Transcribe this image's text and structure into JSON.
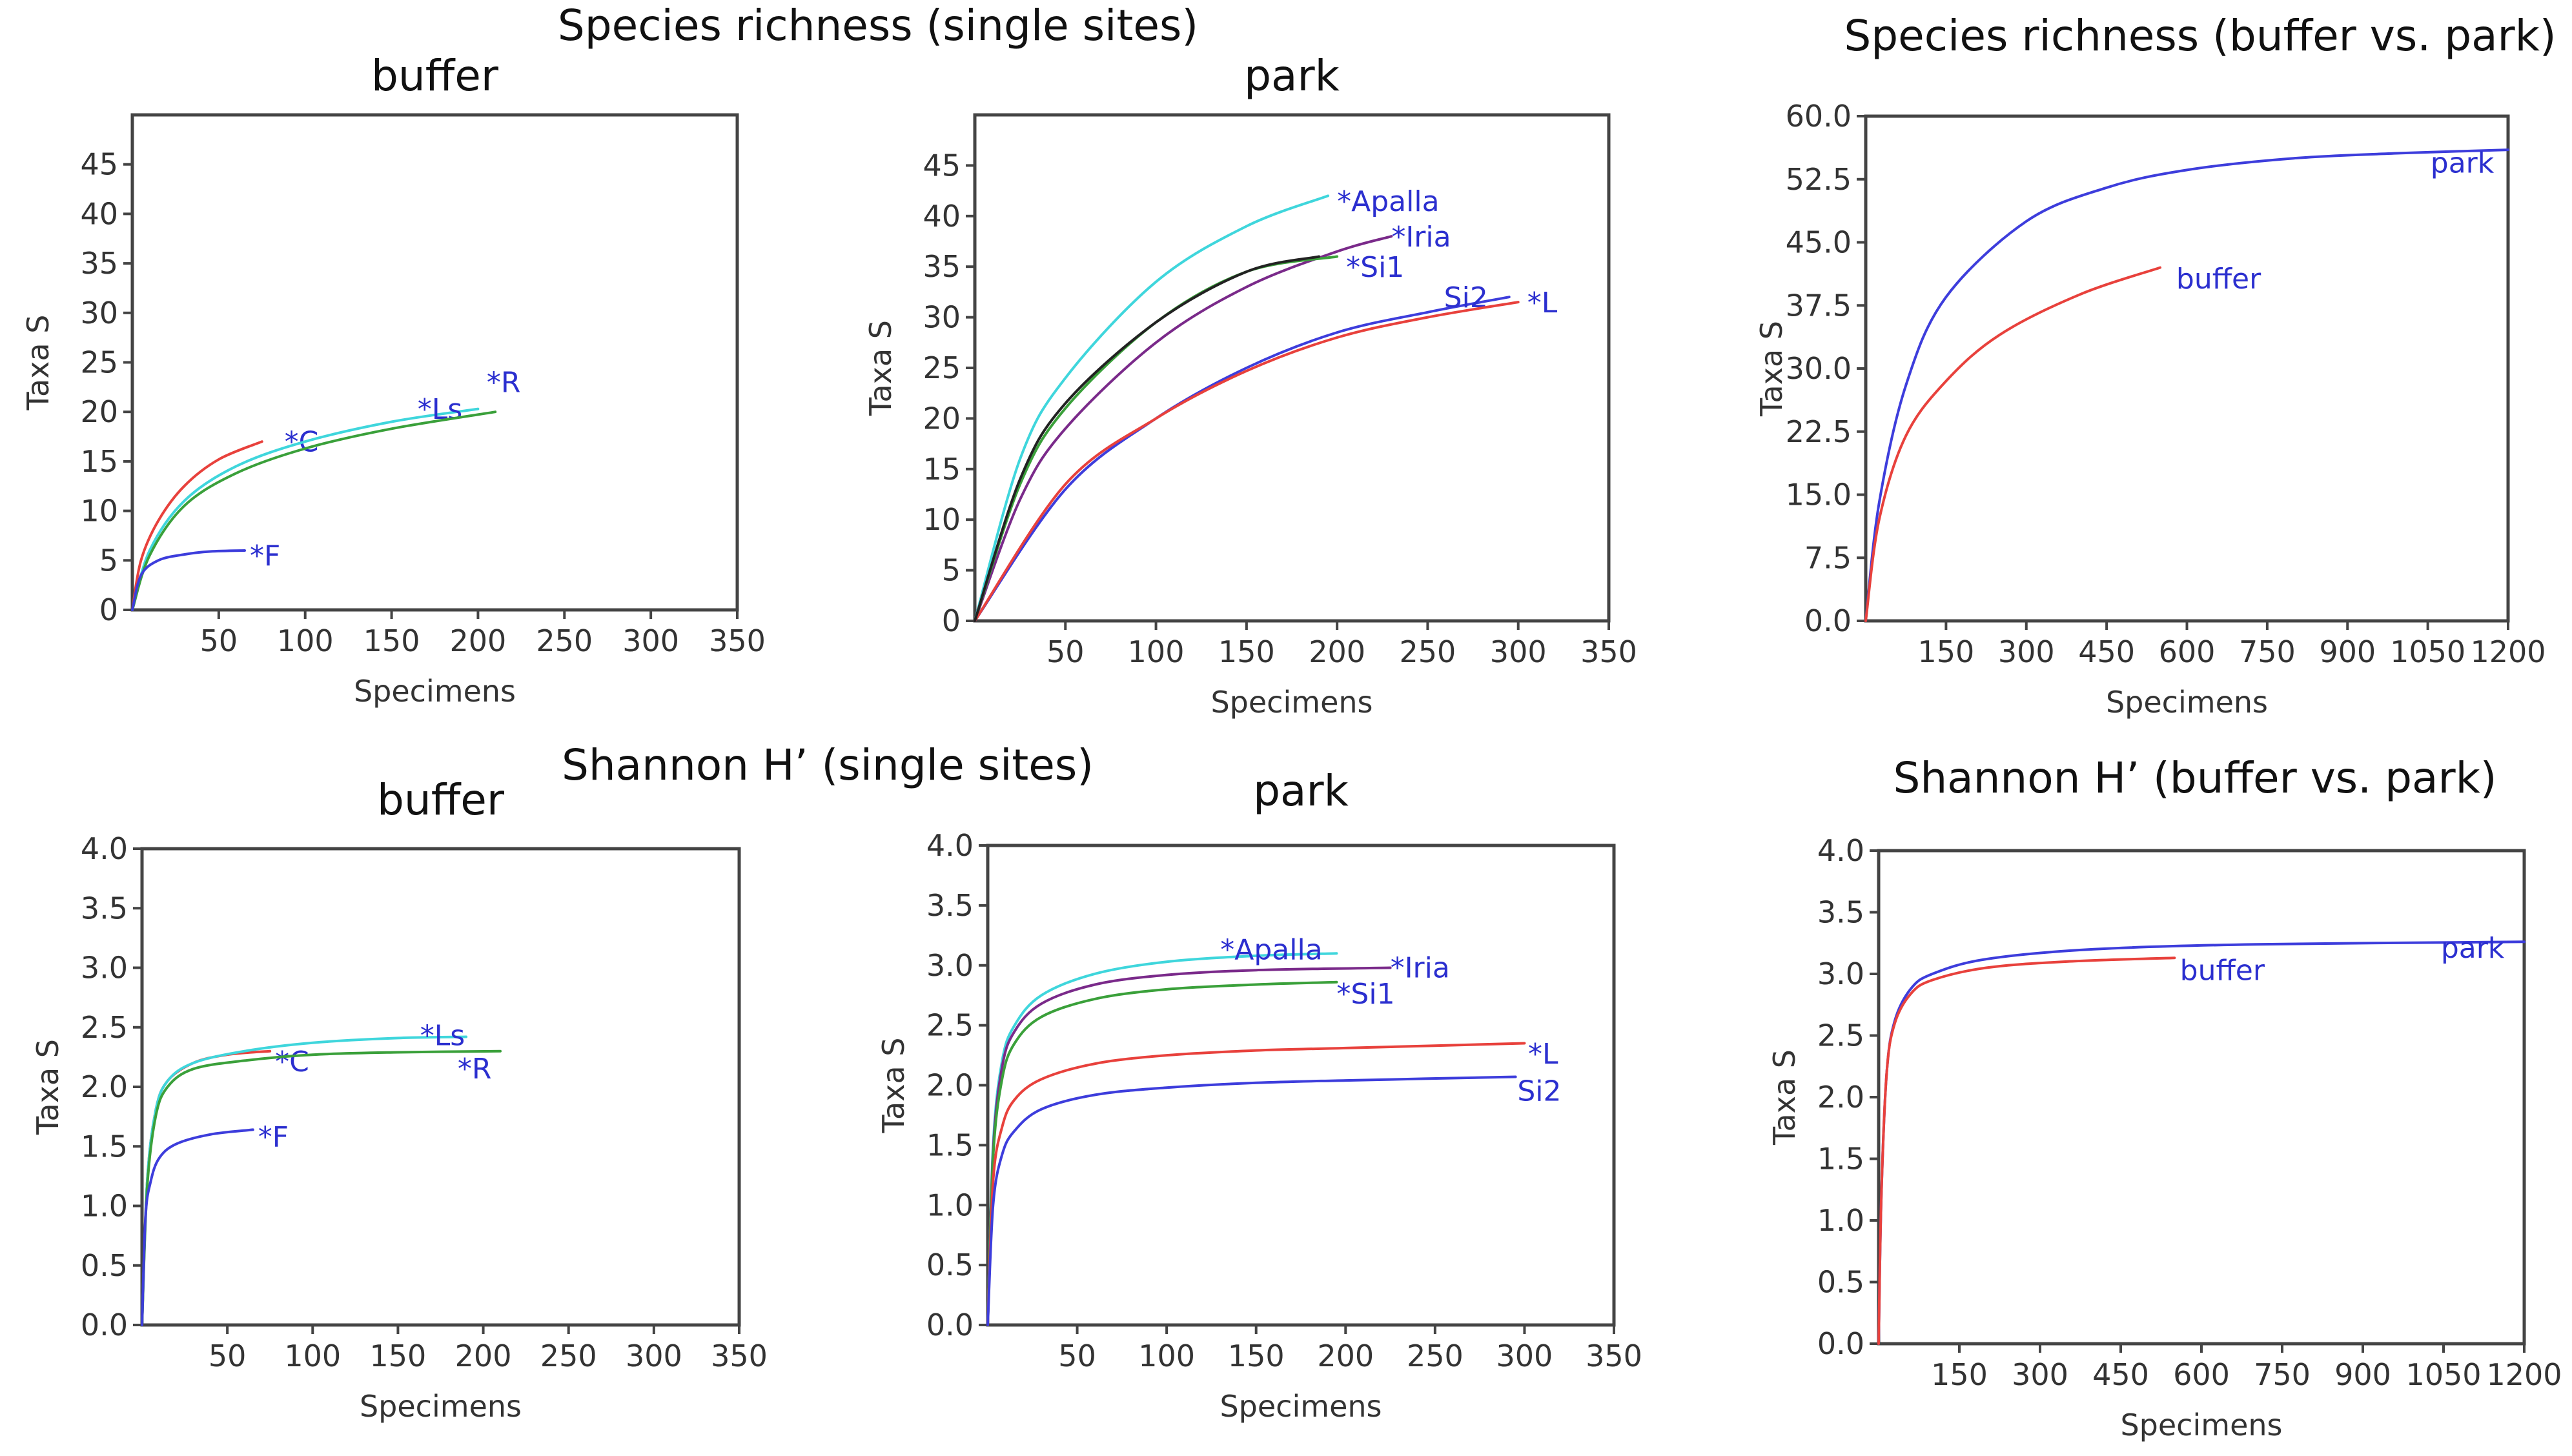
{
  "figure": {
    "section_titles": {
      "richness_single": "Species richness (single sites)",
      "richness_compare": "Species richness (buffer vs. park)",
      "shannon_single": "Shannon H’ (single sites)",
      "shannon_compare": "Shannon H’ (buffer vs. park)"
    }
  },
  "chart_data": [
    {
      "id": "richness_buffer",
      "type": "line",
      "title": "buffer",
      "xlabel": "Specimens",
      "ylabel": "Taxa S",
      "xlim": [
        0,
        350
      ],
      "ylim": [
        0,
        50
      ],
      "xticks": [
        50,
        100,
        150,
        200,
        250,
        300,
        350
      ],
      "xtick_labels": [
        "50",
        "100",
        "150",
        "200",
        "250",
        "300",
        "350"
      ],
      "yticks": [
        0,
        5,
        10,
        15,
        20,
        25,
        30,
        35,
        40,
        45
      ],
      "ytick_labels": [
        "0",
        "5",
        "10",
        "15",
        "20",
        "25",
        "30",
        "35",
        "40",
        "45"
      ],
      "series": [
        {
          "name": "*C",
          "color": "#e8413c",
          "x": [
            0,
            5,
            15,
            30,
            50,
            75
          ],
          "y": [
            0,
            5,
            9,
            12.5,
            15.2,
            17
          ],
          "label": "*C",
          "label_at": [
            88,
            16
          ]
        },
        {
          "name": "*Ls",
          "color": "#3fd6dc",
          "x": [
            0,
            10,
            30,
            60,
            100,
            150,
            200
          ],
          "y": [
            0,
            6,
            11,
            14.5,
            17,
            19,
            20.3
          ],
          "label": "*Ls",
          "label_at": [
            165,
            19.3
          ]
        },
        {
          "name": "*R",
          "color": "#3aa03a",
          "x": [
            0,
            10,
            30,
            60,
            100,
            150,
            210
          ],
          "y": [
            0,
            5.5,
            10.5,
            13.8,
            16.3,
            18.3,
            20
          ],
          "label": "*R",
          "label_at": [
            205,
            22
          ]
        },
        {
          "name": "*F",
          "color": "#3d3ddc",
          "x": [
            0,
            5,
            15,
            30,
            45,
            65
          ],
          "y": [
            0,
            3.5,
            5,
            5.6,
            5.9,
            6
          ],
          "label": "*F",
          "label_at": [
            68,
            4.5
          ]
        }
      ]
    },
    {
      "id": "richness_park",
      "type": "line",
      "title": "park",
      "xlabel": "Specimens",
      "ylabel": "Taxa S",
      "xlim": [
        0,
        350
      ],
      "ylim": [
        0,
        50
      ],
      "xticks": [
        50,
        100,
        150,
        200,
        250,
        300,
        350
      ],
      "xtick_labels": [
        "50",
        "100",
        "150",
        "200",
        "250",
        "300",
        "350"
      ],
      "yticks": [
        0,
        5,
        10,
        15,
        20,
        25,
        30,
        35,
        40,
        45
      ],
      "ytick_labels": [
        "0",
        "5",
        "10",
        "15",
        "20",
        "25",
        "30",
        "35",
        "40",
        "45"
      ],
      "series": [
        {
          "name": "*Apalla",
          "color": "#3fd6dc",
          "x": [
            0,
            25,
            50,
            100,
            150,
            195
          ],
          "y": [
            0,
            16,
            24,
            33.5,
            39,
            42
          ],
          "label": "*Apalla",
          "label_at": [
            200,
            40.5
          ]
        },
        {
          "name": "*Iria",
          "color": "#7a2a8a",
          "x": [
            0,
            25,
            50,
            100,
            150,
            200,
            230
          ],
          "y": [
            0,
            12,
            19,
            27.5,
            33,
            36.5,
            38
          ],
          "label": "*Iria",
          "label_at": [
            230,
            37
          ]
        },
        {
          "name": "*Si1",
          "color": "#3aa03a",
          "x": [
            0,
            25,
            50,
            100,
            150,
            200
          ],
          "y": [
            0,
            13.5,
            21,
            29.5,
            34.5,
            36
          ],
          "label": "*Si1",
          "label_at": [
            205,
            34
          ]
        },
        {
          "name": "Si2",
          "color": "#3d3ddc",
          "x": [
            0,
            50,
            100,
            150,
            200,
            250,
            295
          ],
          "y": [
            0,
            13,
            20,
            25,
            28.5,
            30.5,
            32
          ],
          "label": "Si2",
          "label_at": [
            259,
            31
          ]
        },
        {
          "name": "*L",
          "color": "#e8413c",
          "x": [
            0,
            50,
            100,
            150,
            200,
            250,
            300
          ],
          "y": [
            0,
            13.5,
            20,
            24.7,
            28,
            30,
            31.5
          ],
          "label": "*L",
          "label_at": [
            305,
            30.5
          ]
        },
        {
          "name": "",
          "color": "#222222",
          "x": [
            0,
            25,
            50,
            100,
            150,
            190
          ],
          "y": [
            0,
            14,
            21.5,
            29.5,
            34.5,
            36
          ],
          "label": "",
          "label_at": null
        }
      ]
    },
    {
      "id": "richness_compare",
      "type": "line",
      "title": "",
      "xlabel": "Specimens",
      "ylabel": "Taxa S",
      "xlim": [
        0,
        1200
      ],
      "ylim": [
        0,
        60
      ],
      "xticks": [
        150,
        300,
        450,
        600,
        750,
        900,
        1050,
        1200
      ],
      "xtick_labels": [
        "150",
        "300",
        "450",
        "600",
        "750",
        "900",
        "1050",
        "1200"
      ],
      "yticks": [
        0,
        7.5,
        15,
        22.5,
        30,
        37.5,
        45,
        52.5,
        60
      ],
      "ytick_labels": [
        "0.0",
        "7.5",
        "15.0",
        "22.5",
        "30.0",
        "37.5",
        "45.0",
        "52.5",
        "60.0"
      ],
      "series": [
        {
          "name": "park",
          "color": "#3d3ddc",
          "x": [
            0,
            25,
            75,
            150,
            300,
            450,
            600,
            800,
            1000,
            1200
          ],
          "y": [
            0,
            14,
            28,
            38.5,
            47.5,
            51.5,
            53.6,
            55,
            55.6,
            56
          ],
          "label": "park",
          "label_at": [
            1055,
            53.3
          ]
        },
        {
          "name": "buffer",
          "color": "#e8413c",
          "x": [
            0,
            25,
            75,
            150,
            250,
            400,
            550
          ],
          "y": [
            0,
            12,
            22,
            28.5,
            34,
            38.8,
            42
          ],
          "label": "buffer",
          "label_at": [
            580,
            39.5
          ]
        }
      ]
    },
    {
      "id": "shannon_buffer",
      "type": "line",
      "title": "buffer",
      "xlabel": "Specimens",
      "ylabel": "Taxa S",
      "xlim": [
        0,
        350
      ],
      "ylim": [
        0,
        4
      ],
      "xticks": [
        50,
        100,
        150,
        200,
        250,
        300,
        350
      ],
      "xtick_labels": [
        "50",
        "100",
        "150",
        "200",
        "250",
        "300",
        "350"
      ],
      "yticks": [
        0,
        0.5,
        1,
        1.5,
        2,
        2.5,
        3,
        3.5,
        4
      ],
      "ytick_labels": [
        "0.0",
        "0.5",
        "1.0",
        "1.5",
        "2.0",
        "2.5",
        "3.0",
        "3.5",
        "4.0"
      ],
      "series": [
        {
          "name": "*C",
          "color": "#e8413c",
          "x": [
            0,
            3,
            8,
            15,
            30,
            50,
            75
          ],
          "y": [
            0,
            1.2,
            1.8,
            2.05,
            2.2,
            2.27,
            2.3
          ],
          "label": "*C",
          "label_at": [
            78,
            2.13
          ]
        },
        {
          "name": "*Ls",
          "color": "#3fd6dc",
          "x": [
            0,
            3,
            8,
            15,
            30,
            60,
            100,
            150,
            190
          ],
          "y": [
            0,
            1.2,
            1.8,
            2.05,
            2.2,
            2.3,
            2.37,
            2.41,
            2.42
          ],
          "label": "*Ls",
          "label_at": [
            163,
            2.35
          ]
        },
        {
          "name": "*R",
          "color": "#3aa03a",
          "x": [
            0,
            3,
            8,
            15,
            30,
            60,
            100,
            150,
            210
          ],
          "y": [
            0,
            1.15,
            1.75,
            2.0,
            2.15,
            2.22,
            2.27,
            2.29,
            2.3
          ],
          "label": "*R",
          "label_at": [
            185,
            2.07
          ]
        },
        {
          "name": "*F",
          "color": "#3d3ddc",
          "x": [
            0,
            2,
            5,
            10,
            20,
            40,
            65
          ],
          "y": [
            0,
            0.9,
            1.2,
            1.4,
            1.52,
            1.6,
            1.64
          ],
          "label": "*F",
          "label_at": [
            68,
            1.5
          ]
        }
      ]
    },
    {
      "id": "shannon_park",
      "type": "line",
      "title": "park",
      "xlabel": "Specimens",
      "ylabel": "Taxa S",
      "xlim": [
        0,
        350
      ],
      "ylim": [
        0,
        4
      ],
      "xticks": [
        50,
        100,
        150,
        200,
        250,
        300,
        350
      ],
      "xtick_labels": [
        "50",
        "100",
        "150",
        "200",
        "250",
        "300",
        "350"
      ],
      "yticks": [
        0,
        0.5,
        1,
        1.5,
        2,
        2.5,
        3,
        3.5,
        4
      ],
      "ytick_labels": [
        "0.0",
        "0.5",
        "1.0",
        "1.5",
        "2.0",
        "2.5",
        "3.0",
        "3.5",
        "4.0"
      ],
      "series": [
        {
          "name": "*Apalla",
          "color": "#3fd6dc",
          "x": [
            0,
            3,
            8,
            15,
            30,
            60,
            100,
            150,
            195
          ],
          "y": [
            0,
            1.5,
            2.2,
            2.5,
            2.75,
            2.93,
            3.03,
            3.08,
            3.1
          ],
          "label": "*Apalla",
          "label_at": [
            130,
            3.05
          ]
        },
        {
          "name": "*Iria",
          "color": "#7a2a8a",
          "x": [
            0,
            3,
            8,
            15,
            30,
            60,
            100,
            150,
            225
          ],
          "y": [
            0,
            1.45,
            2.15,
            2.45,
            2.68,
            2.84,
            2.92,
            2.96,
            2.98
          ],
          "label": "*Iria",
          "label_at": [
            225,
            2.9
          ]
        },
        {
          "name": "*Si1",
          "color": "#3aa03a",
          "x": [
            0,
            3,
            8,
            15,
            30,
            60,
            100,
            150,
            195
          ],
          "y": [
            0,
            1.4,
            2.05,
            2.35,
            2.57,
            2.72,
            2.8,
            2.84,
            2.86
          ],
          "label": "*Si1",
          "label_at": [
            195,
            2.68
          ]
        },
        {
          "name": "*L",
          "color": "#e8413c",
          "x": [
            0,
            3,
            8,
            15,
            30,
            60,
            100,
            150,
            200,
            300
          ],
          "y": [
            0,
            1.2,
            1.65,
            1.88,
            2.05,
            2.18,
            2.25,
            2.29,
            2.31,
            2.35
          ],
          "label": "*L",
          "label_at": [
            302,
            2.18
          ]
        },
        {
          "name": "Si2",
          "color": "#3d3ddc",
          "x": [
            0,
            3,
            8,
            15,
            30,
            60,
            100,
            150,
            200,
            295
          ],
          "y": [
            0,
            1.0,
            1.42,
            1.62,
            1.8,
            1.92,
            1.98,
            2.02,
            2.04,
            2.07
          ],
          "label": "Si2",
          "label_at": [
            296,
            1.87
          ]
        }
      ]
    },
    {
      "id": "shannon_compare",
      "type": "line",
      "title": "",
      "xlabel": "Specimens",
      "ylabel": "Taxa S",
      "xlim": [
        0,
        1200
      ],
      "ylim": [
        0,
        4
      ],
      "xticks": [
        150,
        300,
        450,
        600,
        750,
        900,
        1050,
        1200
      ],
      "xtick_labels": [
        "150",
        "300",
        "450",
        "600",
        "750",
        "900",
        "1050",
        "1200"
      ],
      "yticks": [
        0,
        0.5,
        1,
        1.5,
        2,
        2.5,
        3,
        3.5,
        4
      ],
      "ytick_labels": [
        "0.0",
        "0.5",
        "1.0",
        "1.5",
        "2.0",
        "2.5",
        "3.0",
        "3.5",
        "4.0"
      ],
      "series": [
        {
          "name": "park",
          "color": "#3d3ddc",
          "x": [
            0,
            5,
            15,
            30,
            60,
            100,
            200,
            400,
            700,
            1200
          ],
          "y": [
            0,
            1.2,
            2.2,
            2.62,
            2.88,
            3.0,
            3.12,
            3.2,
            3.24,
            3.26
          ],
          "label": "park",
          "label_at": [
            1045,
            3.13
          ]
        },
        {
          "name": "buffer",
          "color": "#e8413c",
          "x": [
            0,
            5,
            15,
            30,
            60,
            100,
            200,
            350,
            550
          ],
          "y": [
            0,
            1.2,
            2.2,
            2.6,
            2.84,
            2.95,
            3.05,
            3.1,
            3.13
          ],
          "label": "buffer",
          "label_at": [
            560,
            2.95
          ]
        }
      ]
    }
  ]
}
